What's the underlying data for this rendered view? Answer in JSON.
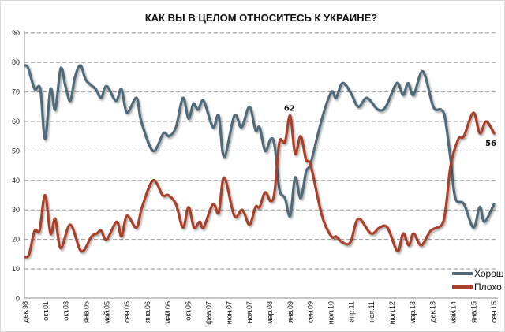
{
  "chart_data": {
    "type": "line",
    "title": "КАК ВЫ В ЦЕЛОМ ОТНОСИТЕСЬ К УКРАИНЕ?",
    "xlabel": "",
    "ylabel": "",
    "ylim": [
      0,
      90
    ],
    "yticks": [
      0,
      10,
      20,
      30,
      40,
      50,
      60,
      70,
      80,
      90
    ],
    "grid": true,
    "legend_position": "bottom-right",
    "categories": [
      "дек.98",
      "окт.01",
      "окт.03",
      "янв.05",
      "май.05",
      "сен.05",
      "янв.06",
      "май.06",
      "окт.06",
      "фев.07",
      "июн.07",
      "ноя.07",
      "мар.08",
      "янв.09",
      "сен.09",
      "июл.10",
      "апр.11",
      "ноя.11",
      "июл.12",
      "мар.13",
      "дек.13",
      "май.14",
      "янв.15",
      "сен.15"
    ],
    "x_note": "x values are positions on the category axis (0 = first category label, 23 = last)",
    "series": [
      {
        "name": "Хорошо",
        "color": "#4f6a78",
        "points": [
          [
            0,
            79
          ],
          [
            0.15,
            78
          ],
          [
            0.46,
            71
          ],
          [
            0.74,
            71
          ],
          [
            0.97,
            54
          ],
          [
            1.24,
            71
          ],
          [
            1.47,
            64
          ],
          [
            1.74,
            78
          ],
          [
            1.97,
            72
          ],
          [
            2.21,
            67
          ],
          [
            2.44,
            75
          ],
          [
            2.71,
            79
          ],
          [
            2.98,
            74
          ],
          [
            3.45,
            71
          ],
          [
            3.72,
            68
          ],
          [
            3.99,
            72
          ],
          [
            4.45,
            67
          ],
          [
            4.72,
            71
          ],
          [
            4.99,
            63
          ],
          [
            5.46,
            68
          ],
          [
            5.69,
            60
          ],
          [
            6.27,
            50
          ],
          [
            6.78,
            56
          ],
          [
            7.05,
            55
          ],
          [
            7.39,
            58
          ],
          [
            7.74,
            68
          ],
          [
            8.01,
            61
          ],
          [
            8.25,
            66
          ],
          [
            8.48,
            64
          ],
          [
            8.75,
            67
          ],
          [
            9.21,
            58
          ],
          [
            9.49,
            62
          ],
          [
            9.76,
            48
          ],
          [
            10.26,
            62
          ],
          [
            10.61,
            58
          ],
          [
            11.0,
            65
          ],
          [
            11.3,
            57
          ],
          [
            11.5,
            58
          ],
          [
            11.77,
            50
          ],
          [
            12.04,
            54
          ],
          [
            12.23,
            52
          ],
          [
            12.47,
            37
          ],
          [
            12.74,
            34
          ],
          [
            13.0,
            28
          ],
          [
            13.24,
            41
          ],
          [
            13.51,
            34
          ],
          [
            13.78,
            43
          ],
          [
            14.01,
            46
          ],
          [
            14.56,
            61
          ],
          [
            15.02,
            70
          ],
          [
            15.25,
            68
          ],
          [
            15.56,
            73
          ],
          [
            15.95,
            70
          ],
          [
            16.34,
            65
          ],
          [
            16.76,
            68
          ],
          [
            17.31,
            64
          ],
          [
            17.69,
            65
          ],
          [
            18.23,
            73
          ],
          [
            18.54,
            69
          ],
          [
            18.78,
            73
          ],
          [
            19.05,
            69
          ],
          [
            19.51,
            77
          ],
          [
            20.02,
            65
          ],
          [
            20.4,
            64
          ],
          [
            20.6,
            61
          ],
          [
            20.87,
            47
          ],
          [
            21.1,
            34
          ],
          [
            21.52,
            32
          ],
          [
            21.99,
            24
          ],
          [
            22.3,
            31
          ],
          [
            22.53,
            26
          ],
          [
            23,
            32
          ]
        ]
      },
      {
        "name": "Плохо",
        "color": "#a8402b",
        "points": [
          [
            0,
            14
          ],
          [
            0.19,
            15
          ],
          [
            0.46,
            23
          ],
          [
            0.7,
            23
          ],
          [
            0.97,
            35
          ],
          [
            1.24,
            22
          ],
          [
            1.47,
            27
          ],
          [
            1.74,
            17
          ],
          [
            2.21,
            25
          ],
          [
            2.75,
            16
          ],
          [
            3.25,
            21
          ],
          [
            3.52,
            22
          ],
          [
            3.72,
            23
          ],
          [
            3.99,
            20
          ],
          [
            4.49,
            26
          ],
          [
            4.72,
            21
          ],
          [
            4.99,
            28
          ],
          [
            5.46,
            24
          ],
          [
            5.73,
            31
          ],
          [
            6.27,
            40
          ],
          [
            6.74,
            35
          ],
          [
            7.01,
            35
          ],
          [
            7.39,
            32
          ],
          [
            7.74,
            24
          ],
          [
            8.01,
            31
          ],
          [
            8.28,
            24
          ],
          [
            8.56,
            26
          ],
          [
            8.75,
            24
          ],
          [
            9.21,
            32
          ],
          [
            9.49,
            29
          ],
          [
            9.76,
            41
          ],
          [
            10.26,
            28
          ],
          [
            10.65,
            30
          ],
          [
            11.0,
            25
          ],
          [
            11.3,
            31
          ],
          [
            11.5,
            31
          ],
          [
            11.77,
            36
          ],
          [
            12.04,
            33
          ],
          [
            12.23,
            36
          ],
          [
            12.47,
            53
          ],
          [
            12.74,
            53
          ],
          [
            13.0,
            62
          ],
          [
            13.24,
            49
          ],
          [
            13.51,
            55
          ],
          [
            13.78,
            47
          ],
          [
            14.01,
            45
          ],
          [
            14.56,
            28
          ],
          [
            15.02,
            21
          ],
          [
            15.25,
            21
          ],
          [
            15.56,
            19
          ],
          [
            15.95,
            19
          ],
          [
            16.34,
            27
          ],
          [
            16.96,
            22
          ],
          [
            17.38,
            24
          ],
          [
            17.77,
            24
          ],
          [
            18.27,
            16
          ],
          [
            18.54,
            22
          ],
          [
            18.82,
            18
          ],
          [
            19.05,
            22
          ],
          [
            19.43,
            18
          ],
          [
            19.9,
            23
          ],
          [
            20.44,
            25
          ],
          [
            20.64,
            31
          ],
          [
            20.87,
            45
          ],
          [
            21.25,
            54
          ],
          [
            21.52,
            55
          ],
          [
            21.99,
            63
          ],
          [
            22.3,
            56
          ],
          [
            22.61,
            60
          ],
          [
            23,
            56
          ]
        ]
      }
    ],
    "annotations": [
      {
        "series": "Плохо",
        "x": 13.0,
        "value": 62,
        "text": "62"
      },
      {
        "series": "Плохо",
        "x": 23,
        "value": 56,
        "text": "56"
      }
    ]
  }
}
